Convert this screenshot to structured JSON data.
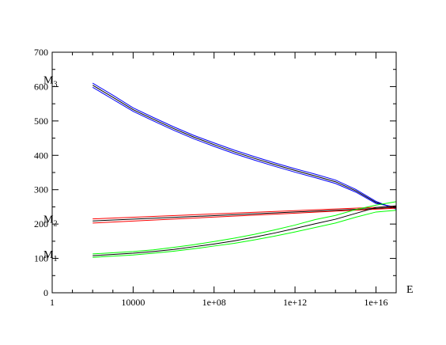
{
  "chart_data": {
    "type": "line",
    "title": "",
    "xlabel": "E",
    "ylabel": "",
    "xscale": "log10",
    "xlim": [
      1,
      1e+17
    ],
    "ylim": [
      0,
      700
    ],
    "grid": false,
    "legend": "none",
    "x_ticks": [
      {
        "value": 1,
        "label": "1"
      },
      {
        "value": 10000,
        "label": "10000"
      },
      {
        "value": 100000000.0,
        "label": "1e+08"
      },
      {
        "value": 1000000000000.0,
        "label": "1e+12"
      },
      {
        "value": 1e+16,
        "label": "1e+16"
      }
    ],
    "y_ticks": [
      {
        "value": 0,
        "label": "0"
      },
      {
        "value": 100,
        "label": "100"
      },
      {
        "value": 200,
        "label": "200"
      },
      {
        "value": 300,
        "label": "300"
      },
      {
        "value": 400,
        "label": "400"
      },
      {
        "value": 500,
        "label": "500"
      },
      {
        "value": 600,
        "label": "600"
      },
      {
        "value": 700,
        "label": "700"
      }
    ],
    "annotations": [
      {
        "base": "M",
        "sub": "3",
        "x": 40,
        "y": 620
      },
      {
        "base": "M",
        "sub": "2",
        "x": 40,
        "y": 215
      },
      {
        "base": "M",
        "sub": "1",
        "x": 40,
        "y": 113
      }
    ],
    "series": [
      {
        "group": "M3",
        "color": "#0000ff",
        "x": [
          100,
          1000,
          10000,
          100000,
          1000000,
          10000000.0,
          100000000.0,
          1000000000.0,
          10000000000.0,
          100000000000.0,
          1000000000000.0,
          10000000000000.0,
          100000000000000.0,
          1000000000000000.0,
          1e+16,
          1e+17
        ],
        "y": [
          610,
          575,
          538,
          510,
          483,
          458,
          436,
          415,
          396,
          378,
          361,
          345,
          328,
          301,
          266,
          243
        ]
      },
      {
        "group": "M3",
        "color": "#000000",
        "x": [
          100,
          1000,
          10000,
          100000,
          1000000,
          10000000.0,
          100000000.0,
          1000000000.0,
          10000000000.0,
          100000000000.0,
          1000000000000.0,
          10000000000000.0,
          100000000000000.0,
          1000000000000000.0,
          1e+16,
          1e+17
        ],
        "y": [
          604,
          569,
          533,
          505,
          478,
          453,
          431,
          410,
          391,
          373,
          356,
          340,
          323,
          297,
          263,
          246
        ]
      },
      {
        "group": "M3",
        "color": "#0000ff",
        "x": [
          100,
          1000,
          10000,
          100000,
          1000000,
          10000000.0,
          100000000.0,
          1000000000.0,
          10000000000.0,
          100000000000.0,
          1000000000000.0,
          10000000000000.0,
          100000000000000.0,
          1000000000000000.0,
          1e+16,
          1e+17
        ],
        "y": [
          598,
          563,
          528,
          500,
          473,
          448,
          426,
          405,
          386,
          368,
          351,
          335,
          318,
          293,
          260,
          249
        ]
      },
      {
        "group": "M2",
        "color": "#ff0000",
        "x": [
          100,
          1e+17
        ],
        "y": [
          215,
          251
        ]
      },
      {
        "group": "M2",
        "color": "#000000",
        "x": [
          100,
          1e+17
        ],
        "y": [
          209,
          248
        ]
      },
      {
        "group": "M2",
        "color": "#ff0000",
        "x": [
          100,
          1e+17
        ],
        "y": [
          203,
          246
        ]
      },
      {
        "group": "M1",
        "color": "#00ff00",
        "x": [
          100,
          10000,
          100000,
          1000000,
          10000000.0,
          100000000.0,
          1000000000.0,
          10000000000.0,
          100000000000.0,
          1000000000000.0,
          10000000000000.0,
          100000000000000.0,
          1000000000000000.0,
          1e+16,
          1e+17
        ],
        "y": [
          113,
          120,
          125,
          132,
          140,
          149,
          159,
          170,
          183,
          197,
          213,
          225,
          242,
          255,
          265
        ]
      },
      {
        "group": "M1",
        "color": "#000000",
        "x": [
          100,
          10000,
          100000,
          1000000,
          10000000.0,
          100000000.0,
          1000000000.0,
          10000000000.0,
          100000000000.0,
          1000000000000.0,
          10000000000000.0,
          100000000000000.0,
          1000000000000000.0,
          1e+16,
          1e+17
        ],
        "y": [
          108,
          115,
          120,
          126,
          134,
          142,
          151,
          162,
          174,
          187,
          201,
          214,
          231,
          248,
          253
        ]
      },
      {
        "group": "M1",
        "color": "#00ff00",
        "x": [
          100,
          10000,
          100000,
          1000000,
          10000000.0,
          100000000.0,
          1000000000.0,
          10000000000.0,
          100000000000.0,
          1000000000000.0,
          10000000000000.0,
          100000000000000.0,
          1000000000000000.0,
          1e+16,
          1e+17
        ],
        "y": [
          103,
          110,
          115,
          121,
          128,
          136,
          144,
          154,
          165,
          177,
          190,
          203,
          220,
          235,
          240
        ]
      }
    ]
  }
}
